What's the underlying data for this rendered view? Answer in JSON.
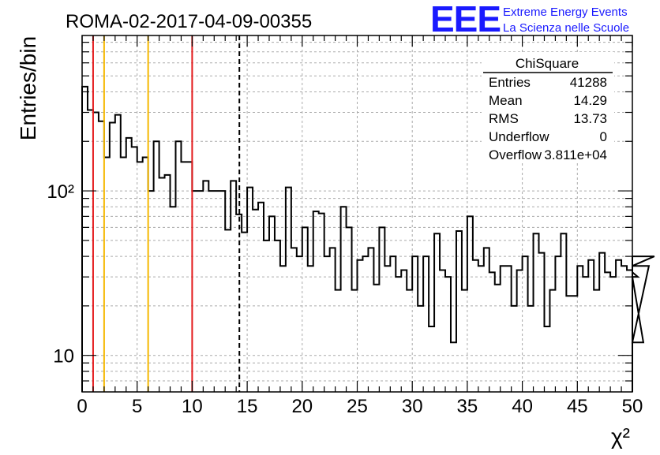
{
  "run_title": "ROMA-02-2017-04-09-00355",
  "logo": {
    "mark": "EEE",
    "line1": "Extreme Energy Events",
    "line2": "La Scienza nelle Scuole",
    "color": "#1a1aff"
  },
  "stats": {
    "title": "ChiSquare",
    "rows": [
      {
        "label": "Entries",
        "value": "41288"
      },
      {
        "label": "Mean",
        "value": "14.29"
      },
      {
        "label": "RMS",
        "value": "13.73"
      },
      {
        "label": "Underflow",
        "value": "0"
      },
      {
        "label": "Overflow",
        "value": "3.811e+04"
      }
    ]
  },
  "colors": {
    "red_lines": "#e41a1c",
    "orange_lines": "#f5b800",
    "grid": "#aaaaaa"
  },
  "chart_data": {
    "type": "histogram",
    "ylabel": "Entries/bin",
    "xlabel": "χ²",
    "xlim": [
      0,
      50
    ],
    "ylim": [
      6,
      880
    ],
    "y_scale": "log",
    "grid": true,
    "bin_width": 0.5,
    "xticks": [
      "0",
      "5",
      "10",
      "15",
      "20",
      "25",
      "30",
      "35",
      "40",
      "45",
      "50"
    ],
    "yticks": [
      {
        "value": 10,
        "label": "10"
      },
      {
        "value": 100,
        "label": "10²"
      }
    ],
    "values": [
      430,
      310,
      300,
      265,
      160,
      260,
      290,
      160,
      210,
      185,
      150,
      160,
      100,
      200,
      120,
      125,
      80,
      200,
      150,
      150,
      100,
      100,
      115,
      100,
      100,
      100,
      58,
      115,
      72,
      56,
      105,
      77,
      85,
      50,
      70,
      50,
      35,
      105,
      45,
      40,
      60,
      35,
      75,
      73,
      40,
      45,
      25,
      80,
      60,
      25,
      38,
      40,
      45,
      27,
      60,
      35,
      40,
      30,
      33,
      25,
      40,
      20,
      40,
      15,
      55,
      33,
      30,
      12,
      57,
      25,
      70,
      38,
      35,
      45,
      32,
      27,
      35,
      35,
      20,
      33,
      40,
      20,
      55,
      42,
      15,
      25,
      40,
      55,
      23,
      23,
      35,
      30,
      38,
      25,
      42,
      32,
      30,
      38,
      35,
      33,
      32,
      30,
      12,
      35,
      40
    ],
    "vlines": [
      {
        "x": 1,
        "style": "red"
      },
      {
        "x": 2,
        "style": "orange"
      },
      {
        "x": 6,
        "style": "orange"
      },
      {
        "x": 10,
        "style": "red"
      },
      {
        "x": 14.29,
        "style": "black-dashed"
      }
    ]
  }
}
